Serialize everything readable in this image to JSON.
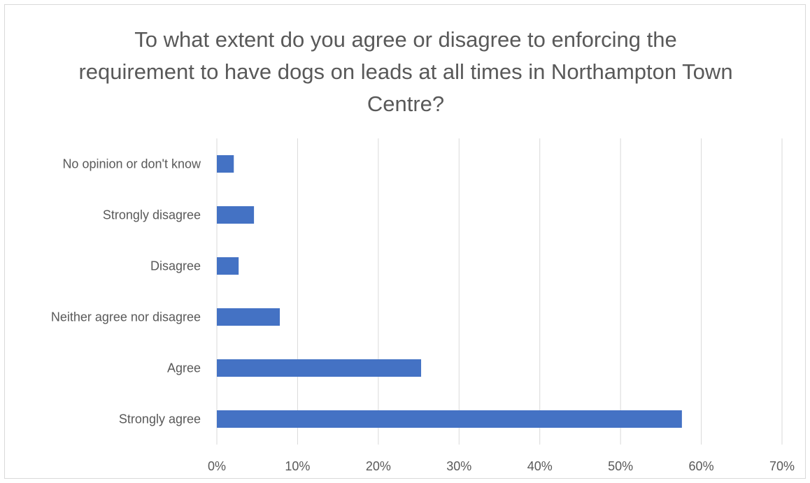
{
  "chart_data": {
    "type": "bar",
    "orientation": "horizontal",
    "title": "To what extent do you agree or disagree to enforcing the requirement to have dogs on leads at all times in Northampton Town Centre?",
    "categories": [
      "Strongly agree",
      "Agree",
      "Neither agree nor disagree",
      "Disagree",
      "Strongly disagree",
      "No opinion or don't know"
    ],
    "values": [
      57.6,
      25.3,
      7.8,
      2.7,
      4.6,
      2.1
    ],
    "value_unit": "%",
    "xlim": [
      0,
      70
    ],
    "x_ticks": [
      0,
      10,
      20,
      30,
      40,
      50,
      60,
      70
    ],
    "x_tick_labels": [
      "0%",
      "10%",
      "20%",
      "30%",
      "40%",
      "50%",
      "60%",
      "70%"
    ],
    "xlabel": "",
    "ylabel": "",
    "grid": "vertical",
    "legend": "none",
    "bar_color": "#4472c4",
    "grid_color": "#d9d9d9"
  }
}
